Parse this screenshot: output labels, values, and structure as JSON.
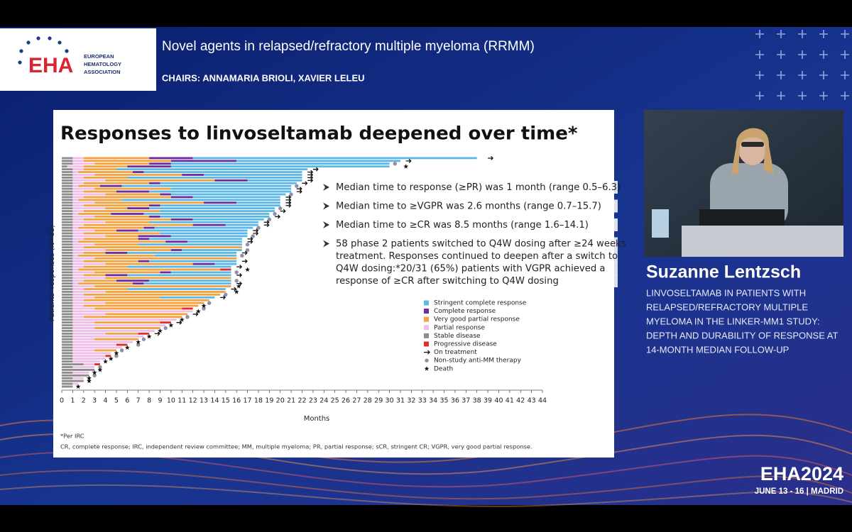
{
  "header": {
    "logo": {
      "name": "EHA",
      "tagline": [
        "EUROPEAN",
        "HEMATOLOGY",
        "ASSOCIATION"
      ]
    },
    "title": "Novel agents in relapsed/refractory multiple myeloma (RRMM)",
    "chairs": "CHAIRS: ANNAMARIA BRIOLI, XAVIER LELEU"
  },
  "slide": {
    "bullets": [
      [
        "Median time to response (≥PR) was 1 month (range 0.5–6.3)"
      ],
      [
        "Median time to ≥VGPR was 2.6 months (range 0.7–15.7)"
      ],
      [
        "Median time to ≥CR was 8.5 months (range 1.6–14.1)"
      ],
      [
        "58 phase 2 patients switched to Q4W dosing after ≥24 weeks",
        "treatment. Responses continued to deepen after a switch to",
        "Q4W dosing:*20/31 (65%) patients with VGPR achieved a",
        "response of ≥CR after switching to Q4W dosing"
      ]
    ],
    "footnotes": [
      "*Per IRC",
      "CR, complete response; IRC, independent review committee; MM, multiple myeloma; PR, partial response; sCR, stringent CR; VGPR, very good partial response."
    ]
  },
  "chart_data": {
    "type": "swimmer",
    "title": "Responses to linvoseltamab deepened over time*",
    "x_label": "Months",
    "y_label": "Patients' responses (N=83)",
    "xlim": [
      0,
      44
    ],
    "xticks": [
      0,
      1,
      2,
      3,
      4,
      5,
      6,
      7,
      8,
      9,
      10,
      11,
      12,
      13,
      14,
      15,
      16,
      17,
      18,
      19,
      20,
      21,
      22,
      23,
      24,
      25,
      26,
      27,
      28,
      29,
      30,
      31,
      32,
      33,
      34,
      35,
      36,
      37,
      38,
      39,
      40,
      41,
      42,
      43,
      44
    ],
    "series": [
      {
        "name": "Stringent complete response",
        "color": "#5bb8e6",
        "values": [
          26,
          15,
          20,
          20,
          17.5,
          14.5,
          9,
          16,
          5,
          12.5,
          15.5,
          11,
          13,
          10.5,
          8,
          14.5,
          4,
          11,
          11.5,
          10.5,
          11.5,
          10,
          6.5,
          10,
          3,
          9,
          10,
          8,
          7,
          8.5,
          5,
          9.5,
          0,
          5.5,
          10,
          7.5,
          0,
          8,
          2,
          9.5,
          0,
          5.5,
          9.5,
          0,
          7.5,
          8,
          0,
          9,
          0,
          0,
          5,
          0,
          0,
          0,
          0,
          0,
          0,
          0,
          0,
          0,
          0,
          0,
          0,
          0,
          0,
          0,
          0,
          0,
          0,
          0,
          0,
          0,
          0,
          0,
          0,
          0,
          0,
          0,
          0,
          0,
          0,
          0,
          0
        ]
      },
      {
        "name": "Complete response",
        "color": "#6a2c9e",
        "values": [
          4,
          6,
          2,
          4,
          0,
          1,
          2,
          0,
          3,
          1,
          2,
          0,
          3,
          1,
          2,
          0,
          3,
          1,
          2,
          0,
          3,
          1,
          2,
          0,
          3,
          1,
          2,
          0,
          3,
          1,
          2,
          0,
          0,
          1,
          2,
          0,
          0,
          1,
          2,
          0,
          0,
          1,
          2,
          0,
          3,
          1,
          0,
          0,
          0,
          0,
          0,
          0,
          0,
          0,
          0,
          0,
          0,
          0,
          0,
          0,
          0,
          0,
          0,
          0,
          0,
          0,
          0,
          0,
          0,
          0,
          0,
          0,
          0,
          0,
          0,
          0,
          0,
          0,
          0,
          0,
          0,
          0,
          0
        ]
      },
      {
        "name": "Very good partial response",
        "color": "#f2a23e",
        "values": [
          6,
          8,
          5,
          4,
          3,
          5,
          8,
          4,
          10,
          6,
          2,
          7,
          3,
          5,
          8,
          4,
          10,
          6,
          2,
          7,
          3,
          5,
          8,
          4,
          10,
          6,
          2,
          7,
          3,
          5,
          8,
          4,
          14.5,
          6,
          2,
          7,
          13,
          5,
          8,
          4,
          13,
          6,
          2,
          11.5,
          3,
          5,
          12.5,
          4,
          11,
          12.5,
          6,
          11.5,
          9,
          10.5,
          8,
          0,
          7.5,
          9,
          0,
          6,
          0,
          6,
          0,
          3,
          0,
          4,
          0,
          0,
          0,
          2,
          0,
          0,
          0,
          0,
          0,
          0,
          0,
          0,
          0,
          0,
          0,
          0,
          0
        ]
      },
      {
        "name": "Partial response",
        "color": "#efbde8",
        "values": [
          1,
          1,
          2,
          1.5,
          1,
          0.5,
          2,
          1,
          3,
          1,
          0.5,
          2,
          1,
          3,
          1,
          0.5,
          2,
          1,
          3,
          1,
          0.5,
          2,
          1,
          3,
          1,
          0.5,
          2,
          1,
          3,
          1,
          0.5,
          2,
          1,
          3,
          1,
          0.5,
          2,
          1,
          3,
          1,
          0.5,
          2,
          1,
          3,
          1,
          0.5,
          2,
          1,
          3,
          1,
          2,
          1,
          3,
          1,
          2,
          11,
          3,
          1,
          9.5,
          2,
          8.5,
          2,
          7.5,
          3,
          6.5,
          2,
          5.5,
          4,
          4.5,
          2,
          3.5,
          3,
          3,
          2.5,
          1,
          2,
          0,
          1.5,
          0,
          1,
          0,
          0.5,
          0
        ]
      },
      {
        "name": "Stable disease",
        "color": "#8c8c8c",
        "values": [
          1,
          1,
          1,
          0.5,
          1,
          1,
          1,
          1,
          1,
          1,
          1,
          1,
          1,
          1,
          1,
          1,
          1,
          1,
          1,
          1,
          1,
          1,
          1,
          1,
          1,
          1,
          1,
          1,
          1,
          1,
          1,
          1,
          1,
          1,
          1,
          1,
          1,
          1,
          1,
          1,
          1,
          1,
          1,
          1,
          1,
          1,
          1,
          1,
          1,
          1,
          1,
          1,
          1,
          1,
          1,
          1,
          1,
          1,
          1,
          1,
          1,
          1,
          1,
          1,
          1,
          1,
          1,
          1,
          1,
          1,
          1,
          1,
          1,
          1,
          2,
          1,
          3,
          1,
          2.5,
          1,
          2,
          1,
          1
        ]
      },
      {
        "name": "Progressive disease",
        "color": "#d8312c",
        "values": [
          0,
          0,
          0,
          0,
          0,
          0,
          0,
          0,
          0,
          0,
          0,
          0,
          0,
          0,
          0,
          0,
          0,
          0,
          0,
          0,
          0,
          0,
          0,
          0,
          0,
          0,
          0,
          0,
          0,
          0,
          0,
          0,
          0,
          0,
          0,
          0,
          0,
          0,
          0,
          0,
          1,
          0,
          0,
          0,
          0,
          0,
          0,
          0,
          0,
          0,
          0,
          0,
          0,
          0,
          1,
          0,
          0,
          0,
          0,
          1,
          0,
          0,
          0,
          1,
          0,
          0,
          0,
          1,
          0,
          0,
          0,
          0.5,
          0,
          0,
          0.5,
          0,
          0,
          0,
          0,
          0,
          0,
          0,
          0
        ]
      }
    ],
    "markers": [
      {
        "name": "On treatment",
        "color": "#111111",
        "values": [
          39,
          31.5,
          null,
          null,
          23,
          22.5,
          22.5,
          22.5,
          22.5,
          22,
          null,
          21.5,
          21.5,
          null,
          20.5,
          20.5,
          20.5,
          20.5,
          null,
          20,
          null,
          19.5,
          null,
          18.5,
          18.5,
          null,
          17.5,
          17.5,
          null,
          17,
          17,
          null,
          null,
          null,
          16.5,
          null,
          null,
          16.5,
          null,
          16,
          null,
          null,
          16,
          null,
          null,
          16,
          null,
          15.5,
          null,
          null,
          14.5,
          null,
          null,
          null,
          null,
          null,
          12,
          null,
          null,
          10.5,
          null,
          null,
          null,
          8.5,
          null,
          null,
          null,
          null,
          null,
          null,
          null,
          null,
          null,
          null,
          null,
          null,
          null,
          null,
          null,
          null,
          null,
          null,
          null
        ]
      },
      {
        "name": "Non-study anti-MM therapy",
        "color": "#8f8fa8",
        "values": [
          null,
          null,
          30.5,
          null,
          null,
          null,
          null,
          null,
          null,
          null,
          21.5,
          null,
          null,
          21,
          null,
          null,
          null,
          null,
          20,
          null,
          19.5,
          null,
          19,
          null,
          null,
          18,
          null,
          null,
          17.5,
          null,
          null,
          17,
          null,
          17,
          null,
          16.5,
          null,
          null,
          null,
          null,
          null,
          16,
          null,
          null,
          16,
          null,
          null,
          null,
          null,
          15,
          null,
          null,
          13.5,
          null,
          13,
          null,
          null,
          11.5,
          null,
          null,
          null,
          9.5,
          null,
          null,
          null,
          7.5,
          null,
          7,
          null,
          5.5,
          null,
          5,
          null,
          null,
          null,
          3.5,
          null,
          null,
          3,
          null,
          null,
          null,
          null
        ]
      },
      {
        "name": "Death",
        "color": "#111111",
        "values": [
          null,
          null,
          null,
          31.5,
          null,
          null,
          null,
          null,
          null,
          null,
          null,
          null,
          null,
          null,
          null,
          null,
          null,
          null,
          null,
          null,
          null,
          null,
          null,
          null,
          null,
          null,
          null,
          null,
          null,
          null,
          null,
          null,
          null,
          null,
          null,
          null,
          null,
          null,
          null,
          null,
          17,
          null,
          null,
          null,
          null,
          null,
          16.2,
          null,
          16,
          null,
          null,
          null,
          null,
          13,
          null,
          12.5,
          null,
          null,
          11,
          null,
          10,
          null,
          9,
          null,
          8,
          null,
          7,
          null,
          6,
          null,
          5,
          null,
          4.5,
          4,
          null,
          null,
          3.5,
          3,
          null,
          2.5,
          2.5,
          null,
          1.5
        ]
      }
    ]
  },
  "speaker": {
    "name": "Suzanne Lentzsch",
    "talk_title": [
      "LINVOSELTAMAB IN PATIENTS WITH",
      "RELAPSED/REFRACTORY MULTIPLE",
      "MYELOMA IN THE LINKER-MM1 STUDY:",
      "DEPTH AND DURABILITY OF RESPONSE AT",
      "14-MONTH MEDIAN FOLLOW-UP"
    ]
  },
  "event": {
    "name": "EHA2024",
    "dates": "JUNE 13 - 16 | MADRID"
  }
}
